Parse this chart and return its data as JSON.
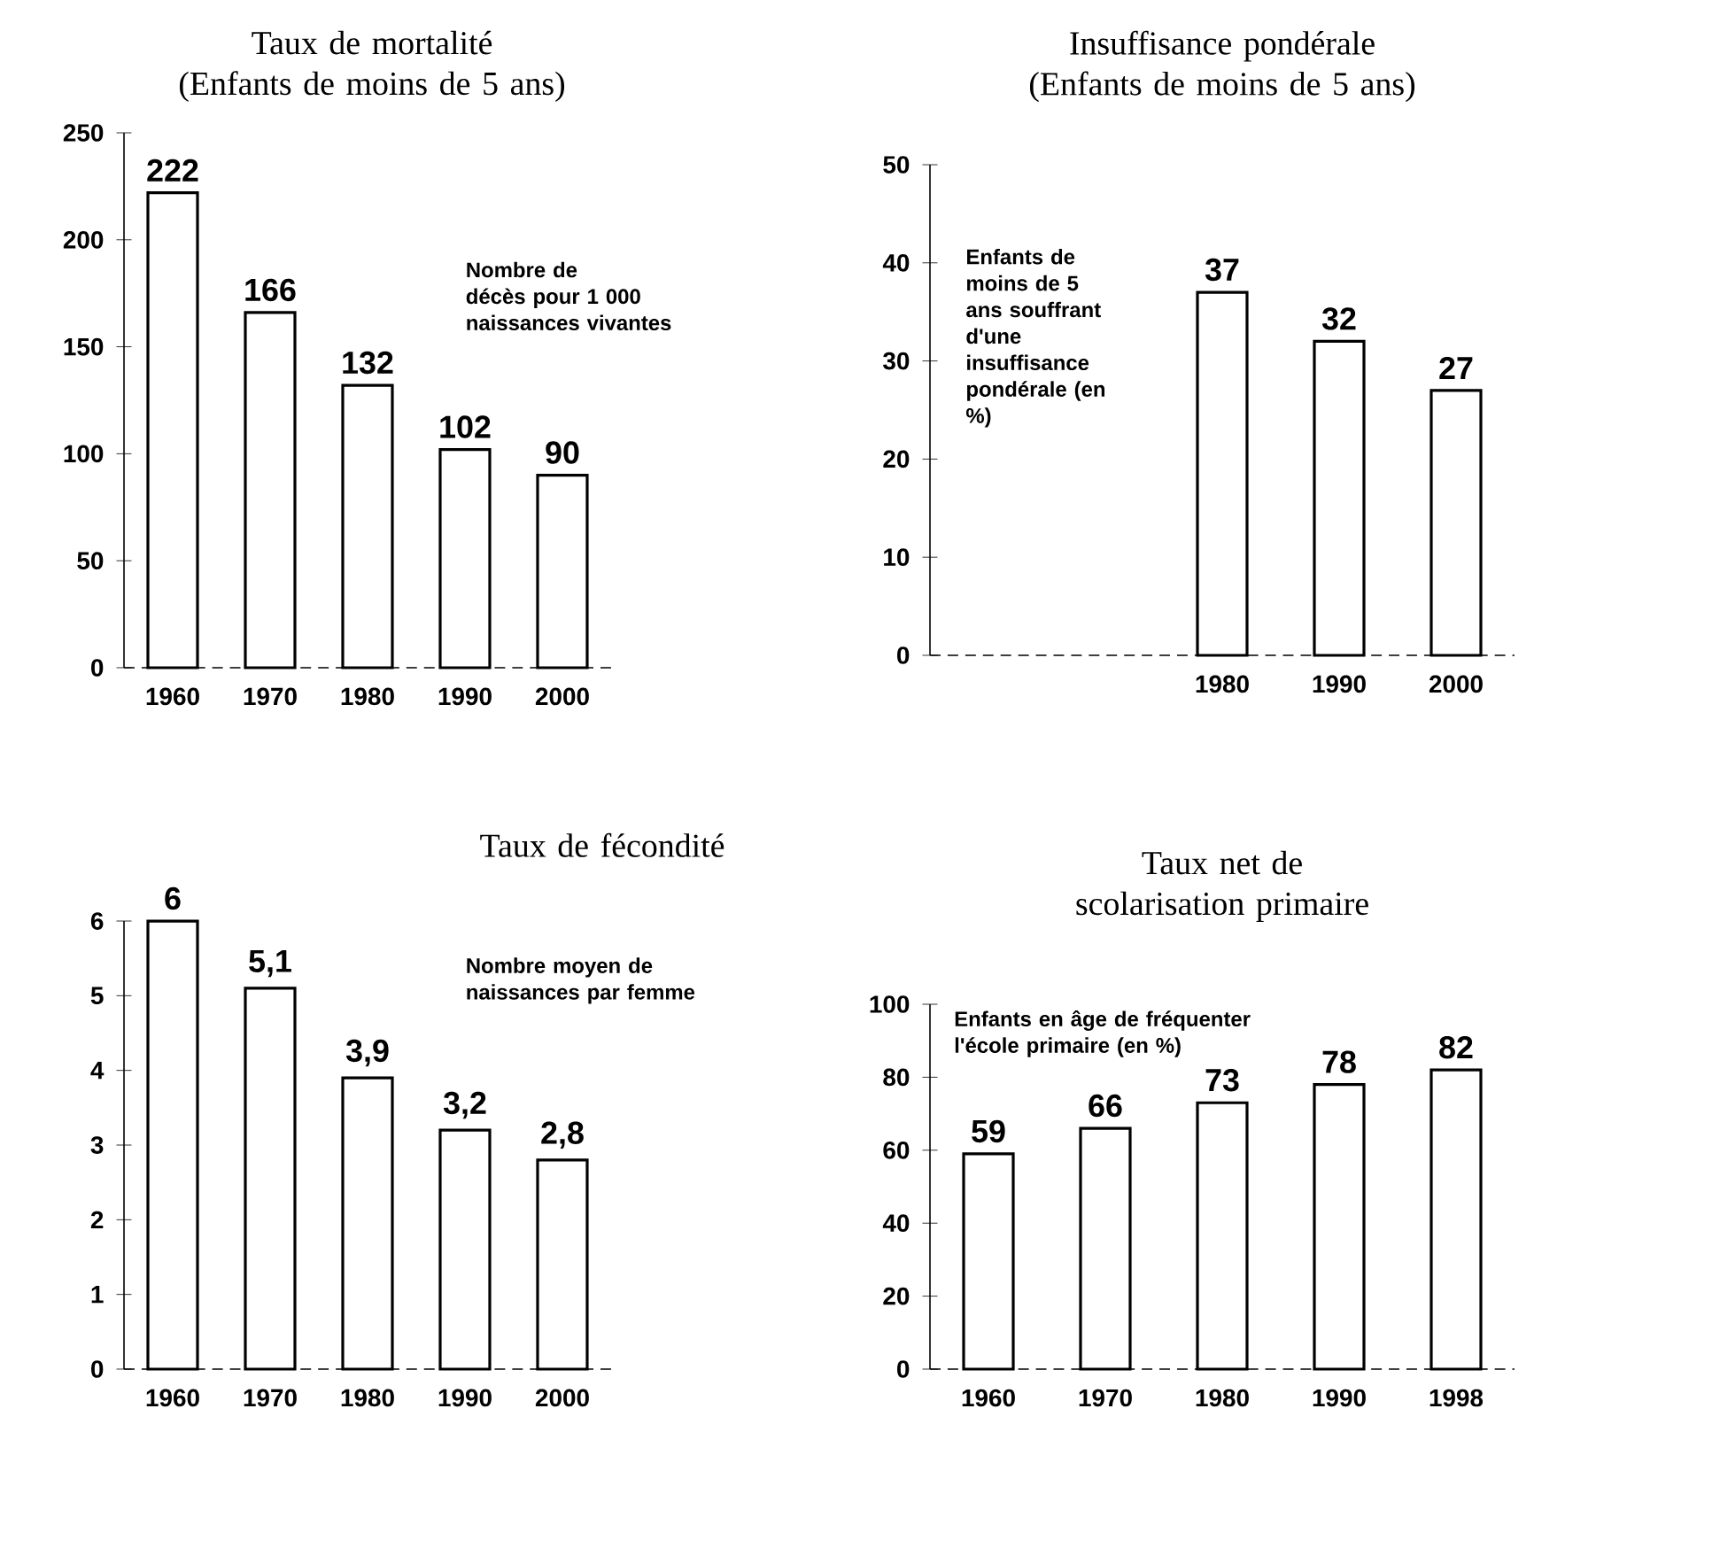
{
  "chart_data": [
    {
      "type": "bar",
      "title": "Taux de mortalité",
      "subtitle": "(Enfants de moins de 5 ans)",
      "categories": [
        "1960",
        "1970",
        "1980",
        "1990",
        "2000"
      ],
      "values": [
        222,
        166,
        132,
        102,
        90
      ],
      "value_labels": [
        "222",
        "166",
        "132",
        "102",
        "90"
      ],
      "color": "#ffffff",
      "ylim": [
        0,
        250
      ],
      "yticks": [
        0,
        50,
        100,
        150,
        200,
        250
      ],
      "annotations": [
        "Nombre de décès pour 1 000 naissances vivantes"
      ]
    },
    {
      "type": "bar",
      "title": "Insuffisance pondérale",
      "subtitle": "(Enfants de moins de 5 ans)",
      "categories": [
        null,
        null,
        "1980",
        "1990",
        "2000"
      ],
      "values": [
        null,
        null,
        37,
        32,
        27
      ],
      "value_labels": [
        null,
        null,
        "37",
        "32",
        "27"
      ],
      "color": "#ffffff",
      "ylim": [
        0,
        50
      ],
      "yticks": [
        0,
        10,
        20,
        30,
        40,
        50
      ],
      "annotations": [
        "Enfants de moins de 5 ans souffrant d'une insuffisance pondérale (en %)"
      ]
    },
    {
      "type": "bar",
      "title": "Taux de fécondité",
      "categories": [
        "1960",
        "1970",
        "1980",
        "1990",
        "2000"
      ],
      "values": [
        6,
        5.1,
        3.9,
        3.2,
        2.8
      ],
      "value_labels": [
        "6",
        "5,1",
        "3,9",
        "3,2",
        "2,8"
      ],
      "color": "#ffffff",
      "ylim": [
        0,
        6
      ],
      "yticks": [
        0,
        1,
        2,
        3,
        4,
        5,
        6
      ],
      "annotations": [
        "Nombre moyen de naissances par femme"
      ]
    },
    {
      "type": "bar",
      "title": "Taux net de scolarisation primaire",
      "categories": [
        "1960",
        "1970",
        "1980",
        "1990",
        "1998"
      ],
      "values": [
        59,
        66,
        73,
        78,
        82
      ],
      "value_labels": [
        "59",
        "66",
        "73",
        "78",
        "82"
      ],
      "color": "#ffffff",
      "ylim": [
        0,
        100
      ],
      "yticks": [
        0,
        20,
        40,
        60,
        80,
        100
      ],
      "annotations": [
        "Enfants en âge de fréquenter l'école primaire (en %)"
      ]
    }
  ]
}
